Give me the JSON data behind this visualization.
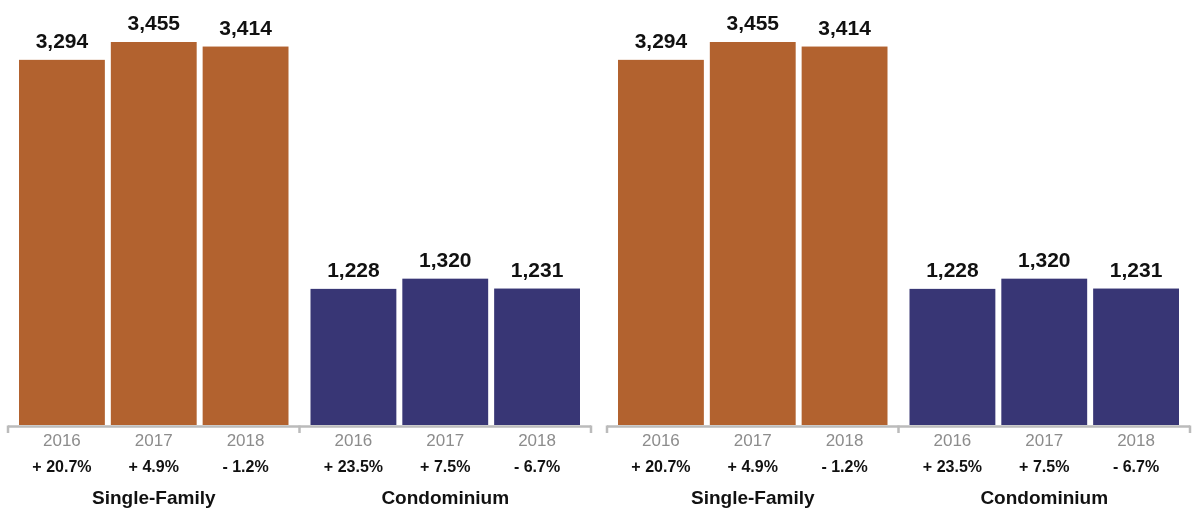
{
  "chart_data": [
    {
      "type": "bar",
      "categories": [
        "2016",
        "2017",
        "2018",
        "2016",
        "2017",
        "2018"
      ],
      "values": [
        3294,
        3455,
        3414,
        1228,
        1320,
        1231
      ],
      "colors": [
        "#b2622f",
        "#b2622f",
        "#b2622f",
        "#383675",
        "#383675",
        "#383675"
      ],
      "value_labels": [
        "3,294",
        "3,455",
        "3,414",
        "1,228",
        "1,320",
        "1,231"
      ],
      "annotations": [
        "+ 20.7%",
        "+ 4.9%",
        "- 1.2%",
        "+ 23.5%",
        "+ 7.5%",
        "- 6.7%",
        "Single-Family",
        "Condominium"
      ]
    },
    {
      "type": "bar",
      "categories": [
        "2016",
        "2017",
        "2018",
        "2016",
        "2017",
        "2018"
      ],
      "values": [
        3294,
        3455,
        3414,
        1228,
        1320,
        1231
      ],
      "colors": [
        "#b2622f",
        "#b2622f",
        "#b2622f",
        "#383675",
        "#383675",
        "#383675"
      ],
      "value_labels": [
        "3,294",
        "3,455",
        "3,414",
        "1,228",
        "1,320",
        "1,231"
      ],
      "annotations": [
        "+ 20.7%",
        "+ 4.9%",
        "- 1.2%",
        "+ 23.5%",
        "+ 7.5%",
        "- 6.7%",
        "Single-Family",
        "Condominium"
      ]
    }
  ]
}
